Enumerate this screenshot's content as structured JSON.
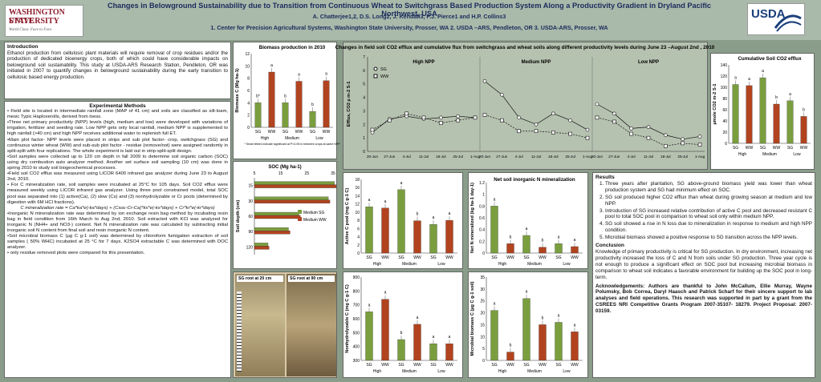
{
  "header": {
    "title": "Changes in Belowground Sustainability due to Transition from Continuous Wheat to Switchgrass  Based Production System Along  a Productivity Gradient in  Dryland Pacific Northwest, USA",
    "authors": "A.  Chatterjee1,2, D.S. Long2, J. Kendall3, F.J. Pierce1 and H.P. Collins3",
    "affiliations": "1. Center for Precision Agricultural Systems, Washington State University, Prosser, WA 2. USDA –ARS, Pendleton, OR 3. USDA-ARS, Prosser, WA",
    "wsu_line1": "WASHINGTON STATE",
    "wsu_line2": "UNIVERSITY",
    "wsu_tag": "World Class. Face to Face.",
    "usda": "USDA"
  },
  "intro": {
    "heading": "Introduction",
    "text": "Ethanol production from cellulosic plant materials will require removal of crop residues and/or the production of dedicated bioenergy crops, both of which could have considerable impacts on belowground soil sustainability. This study at USDA-ARS Research Station, Pendleton, OR was initiated in 2007 to quantify changes in belowground sustainability during the early transition to cellulosic based energy production."
  },
  "methods": {
    "heading": "Experimental Methods",
    "items": [
      "• Field site is located in intermediate rainfall zone (MAP of 41 cm) and soils are classified as silt-loam, mesic Typic Haploxerolls, derived from loess.",
      "•Three net primary productivity (NPP) levels (high, medium and low) were developed with variations of irrigation, fertilizer and seeding rate. Low NPP gets only local rainfall, medium NPP is supplemented to high rainfall (>40 cm) and high NPP receives additional water to replenish full ET.",
      "•Main plot factor- NPP levels  were placed in strips and sub plot factor- crop, switchgrass (SG) and continuous winter wheat (WW) and sub-sub plot factor - residue (remove/not) were assigned randomly in split-split with four replications. The whole experiment is laid out in strip-split-split design.",
      "•Soil samples were collected up to 120 cm depth in fall 2009 to determine soil organic carbon (SOC) using dry combustion auto analyzer method. Another set surface soil sampling (10 cm) was done in spring 2010 to study  soil biogeochemical processes.",
      "•Field soil CO2 efflux was measured using LICOR 6400 infrared gas analyzer during June 23 to August 2nd, 2010.",
      "• For C mineralization rate, soil samples were incubated at 25°C for 105 days. Soil CO2 efflux were measured weekly using LICOR infrared gas analyzer. Using three pool constrained model, total SOC pool was separated into (1) active(Ca), (2) slow (Cs) and (3) nonhydrolyzable or Cr pools (determined by digestion with 6M HCl fractions).",
      "C mineralization rate = Ca*ka*e(-ka*days) + (Csoc-Cr-Ca)*ks*e(-ks*days) + Cr*kr*e(-kr*days)",
      "•Inorganic N mineralization rate was determined by ion exchange resin bag method by incubating resin bag in field condition from 16th March to Aug 2nd, 2010. Soil extracted with KCl was analyzed for inorganic N (NH4+ and NO3-) content. Net N mineralization rate was calculated by subtracting initial inorganic soil N content from final soil and resin inorganic N content.",
      "•Soil microbial biomass C (µg C g-1 soil) was determined by chloroform fumigation extraction of soil samples ( 50% WHC) incubated at 25 °C for 7 days. K2SO4 extractable C was determined with DOC analyzer.",
      "• only residue removed plots were compared for this presentation."
    ]
  },
  "results": {
    "heading": "Results",
    "items": [
      "Three years after plantation, SG above-ground biomass yield was lower than wheat production system and SG had minimum effect on SOC.",
      "SG soil produced higher CO2 efflux than wheat during growing season at medium and low NPP.",
      "Introduction of SG increased relative contribution of active C pool and decreased resistant C pool to total SOC pool in comparison to wheat soil only within medium NPP.",
      "SG soil showed a rise in N loss due to mineralization in response to medium and high NPP condition.",
      "Microbial biomass showed a positive response to SG transition across the NPP levels."
    ]
  },
  "conclusion": {
    "heading": "Conclusion",
    "text": "Knowledge of primary productivity is critical for SG production. In dry environment, increasing net productivity increased the loss of C and N from soils under SG production. Three year cycle is not enough to produce a significant effect on SOC pool but increasing microbial biomass in comparison to wheat soil indicates a favorable environment for building up the SOC pool in long-term."
  },
  "ack": {
    "text": "Acknowledgements: Authors are thankful to John McCallum, Ellie Murray, Wayne Polumsky, Bob Correa, Daryl Haasch and Patrick Scharf for their sincere support to lab analyses and field operations. This research was supported in part by a grant from the CSREES NRI Competitive  Grants Program 2007-35107- 18279. Project Proposal: 2007-03159."
  },
  "photos": {
    "left": "SG root at 20 cm",
    "right": "SG root at 90 cm"
  },
  "chart_data": [
    {
      "type": "bar",
      "title": "Biomass production in 2010",
      "ylabel": "Biomass C (Mg ha-1)",
      "categories": [
        "SG",
        "WW",
        "SG",
        "WW",
        "SG",
        "WW"
      ],
      "groups": [
        "High",
        "Medium",
        "Low"
      ],
      "values": [
        4.0,
        9.0,
        4.0,
        7.5,
        2.6,
        7.6
      ],
      "letters": [
        "b*",
        "a",
        "b",
        "a",
        "b",
        "a"
      ],
      "ylim": [
        0,
        12
      ],
      "note": "* Small letters indicate significant at P<0.05 in between crops at same NPP"
    },
    {
      "type": "bar",
      "title": "SOC (Mg ha-1)",
      "ylabel": "Soil depth (cm)",
      "orientation": "horizontal",
      "categories": [
        "15",
        "30",
        "60",
        "90",
        "120"
      ],
      "series": [
        {
          "name": "Medium SG",
          "values": [
            35.5,
            33.2,
            22.0,
            18.0,
            10.2
          ]
        },
        {
          "name": "Medium WW",
          "values": [
            36.2,
            33.8,
            22.5,
            18.6,
            10.6
          ]
        }
      ],
      "xlim": [
        5,
        35
      ]
    },
    {
      "type": "line",
      "title": "Changes in field soil CO2 efflux and cumulative flux from switchgrass and wheat soils along different productivity levels during June 23 –August 2nd , 2010",
      "ylabel": "Efflux, CO2 µ m-2 S-1",
      "ylim": [
        0,
        7
      ],
      "panels": [
        {
          "name": "High NPP",
          "x": [
            "20-Jun",
            "27-Jun",
            "4-Jul",
            "11-Jul",
            "18-Jul",
            "25-Jul",
            "1-Aug"
          ],
          "SG": [
            1.4,
            2.4,
            2.6,
            2.4,
            2.5,
            2.6,
            2.5
          ],
          "WW": [
            1.6,
            2.3,
            2.8,
            2.5,
            2.1,
            2.3,
            2.5
          ]
        },
        {
          "name": "Medium NPP",
          "x": [
            "20-Jun",
            "27-Jun",
            "4-Jul",
            "11-Jul",
            "18-Jul",
            "25-Jul",
            "1-Aug"
          ],
          "SG": [
            5.2,
            4.2,
            2.5,
            2.0,
            2.8,
            2.3,
            1.6
          ],
          "WW": [
            2.7,
            2.3,
            1.5,
            1.5,
            1.4,
            1.3,
            1.0
          ]
        },
        {
          "name": "Low NPP",
          "x": [
            "20-Jun",
            "27-Jun",
            "4-Jul",
            "11-Jul",
            "18-Jul",
            "25-Jul",
            "1-Aug"
          ],
          "SG": [
            3.5,
            2.8,
            1.7,
            1.8,
            1.2,
            0.9,
            1.1
          ],
          "WW": [
            2.5,
            2.2,
            1.3,
            1.0,
            0.4,
            0.6,
            0.5
          ]
        }
      ],
      "legend": [
        "SG",
        "WW"
      ]
    },
    {
      "type": "bar",
      "title": "Cumulative Soil CO2 efflux",
      "ylabel": "µmole CO2 m-2 S-1",
      "categories": [
        "SG",
        "WW",
        "SG",
        "WW",
        "SG",
        "WW"
      ],
      "groups": [
        "High",
        "Medium",
        "Low"
      ],
      "values": [
        105,
        103,
        117,
        70,
        76,
        48
      ],
      "letters": [
        "a",
        "a",
        "a",
        "b",
        "a",
        "b"
      ],
      "ylim": [
        0,
        140
      ]
    },
    {
      "type": "bar",
      "title": "",
      "ylabel": "Active C pool (mg C g-1 C)",
      "categories": [
        "SG",
        "WW",
        "SG",
        "WW",
        "SG",
        "WW"
      ],
      "groups": [
        "High",
        "Medium",
        "Low"
      ],
      "values": [
        11.3,
        11.0,
        15.5,
        7.9,
        7.0,
        8.0
      ],
      "letters": [
        "a",
        "a",
        "a",
        "b",
        "a",
        "a"
      ],
      "ylim": [
        0,
        18
      ]
    },
    {
      "type": "bar",
      "title": "Net soil inorganic N mineralization",
      "ylabel": "Net N mineralized (kg ha-1 day-1)",
      "categories": [
        "SG",
        "WW",
        "SG",
        "WW",
        "SG",
        "WW"
      ],
      "groups": [
        "High",
        "Medium",
        "Low"
      ],
      "values": [
        0.8,
        0.16,
        0.3,
        0.1,
        0.16,
        0.11
      ],
      "letters": [
        "a",
        "b",
        "a",
        "b",
        "a",
        "a"
      ],
      "ylim": [
        0,
        1.2
      ]
    },
    {
      "type": "bar",
      "title": "",
      "ylabel": "Nonhydrolyzable C (mg C g-1 C)",
      "categories": [
        "SG",
        "WW",
        "SG",
        "WW",
        "SG",
        "WW"
      ],
      "groups": [
        "High",
        "Medium",
        "Low"
      ],
      "values": [
        650,
        740,
        450,
        560,
        420,
        420
      ],
      "letters": [
        "a",
        "a",
        "b",
        "a",
        "a",
        "a"
      ],
      "ylim": [
        300,
        900
      ]
    },
    {
      "type": "bar",
      "title": "",
      "ylabel": "Microbial biomass C (µg C g-1 soil)",
      "categories": [
        "SG",
        "WW",
        "SG",
        "WW",
        "SG",
        "WW"
      ],
      "groups": [
        "High",
        "Medium",
        "Low"
      ],
      "values": [
        21,
        3.5,
        26,
        15,
        16,
        12
      ],
      "letters": [
        "a",
        "b",
        "a",
        "b",
        "a",
        "a"
      ],
      "ylim": [
        0,
        35
      ]
    }
  ]
}
